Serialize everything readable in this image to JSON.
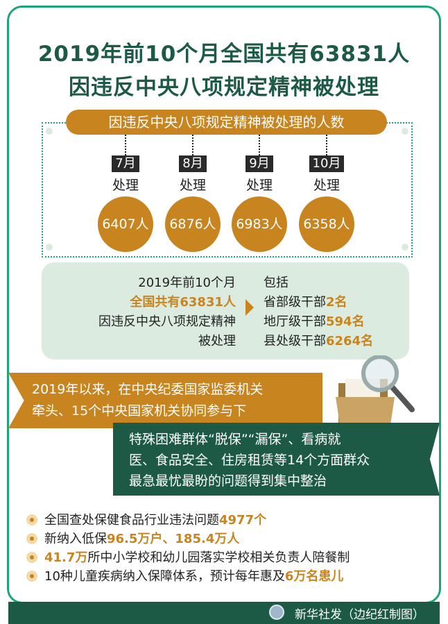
{
  "title": {
    "line1": "2019年前10个月全国共有63831人",
    "line2": "因违反中央八项规定精神被处理"
  },
  "monthly": {
    "header": "因违反中央八项规定精神被处理的人数",
    "items": [
      {
        "month": "7月",
        "label": "处理",
        "count": "6407人"
      },
      {
        "month": "8月",
        "label": "处理",
        "count": "6876人"
      },
      {
        "month": "9月",
        "label": "处理",
        "count": "6983人"
      },
      {
        "month": "10月",
        "label": "处理",
        "count": "6358人"
      }
    ]
  },
  "summary": {
    "left": [
      "2019年前10个月",
      "全国共有63831人",
      "因违反中央八项规定精神",
      "被处理"
    ],
    "right_title": "包括",
    "right": [
      {
        "label": "省部级干部",
        "value": "2名"
      },
      {
        "label": "地厅级干部",
        "value": "594名"
      },
      {
        "label": "县处级干部",
        "value": "6264名"
      }
    ]
  },
  "banner_orange": [
    "2019年以来，在中央纪委国家监委机关",
    "牵头、15个中央国家机关协同参与下"
  ],
  "banner_green": [
    "特殊困难群体“脱保”“漏保”、看病就",
    "医、食品安全、住房租赁等14个方面群众",
    "最急最忧最盼的问题得到集中整治"
  ],
  "bullets": [
    {
      "pre": "全国查处保健食品行业违法问题",
      "hl": "4977个",
      "post": ""
    },
    {
      "pre": "新纳入低保",
      "hl": "96.5万户、185.4万人",
      "post": ""
    },
    {
      "pre": "",
      "hl": "41.7万",
      "post": "所中小学校和幼儿园落实学校相关负责人陪餐制"
    },
    {
      "pre": "10种儿童疾病纳入保障体系，预计每年惠及",
      "hl": "6万名患儿",
      "post": ""
    }
  ],
  "footer": {
    "credit": "新华社发（边纪红制图）"
  },
  "colors": {
    "green": "#1d5a45",
    "border": "#1aa57a",
    "orange": "#c8841e",
    "light": "#dcebdf"
  }
}
